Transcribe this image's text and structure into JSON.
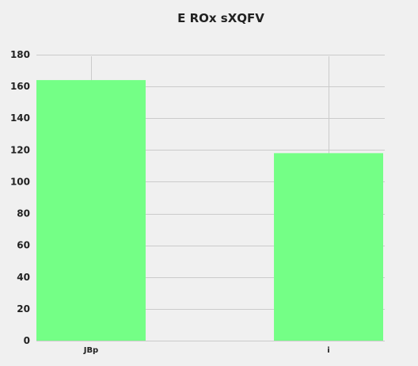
{
  "chart_data": {
    "type": "bar",
    "title": "E ROx sXQFV",
    "xlabel": "",
    "ylabel": "",
    "categories": [
      "JBp",
      "i"
    ],
    "values": [
      164,
      118
    ],
    "ylim": [
      0,
      180
    ],
    "yticks": [
      0,
      20,
      40,
      60,
      80,
      100,
      120,
      140,
      160,
      180
    ],
    "grid": true,
    "legend": "none",
    "bar_color": "#74ff86",
    "background_color": "#f0f0f0",
    "grid_color": "#cbcbcb"
  }
}
